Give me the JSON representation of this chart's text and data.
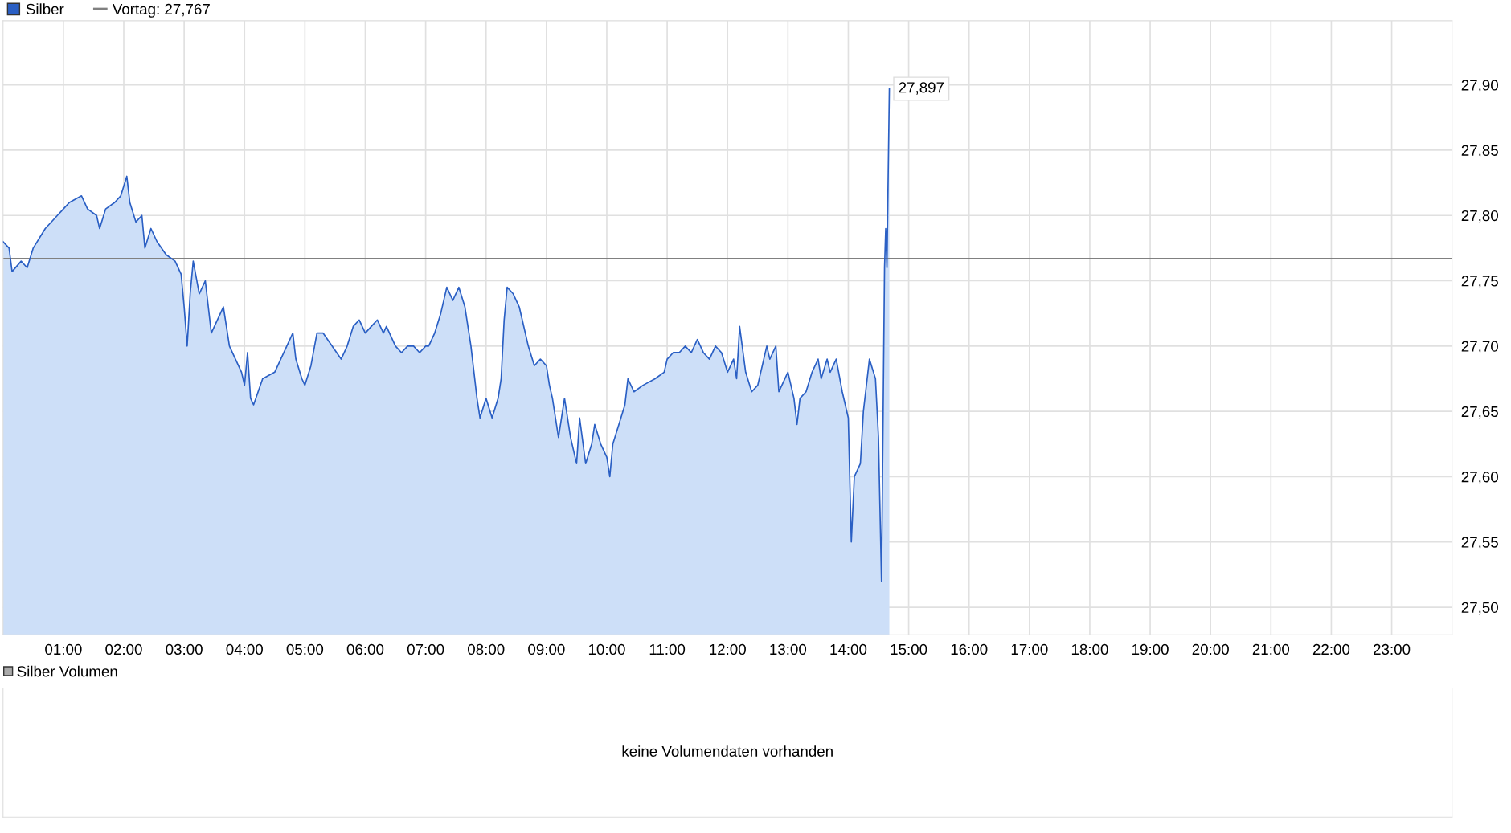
{
  "chart_data": [
    {
      "type": "area",
      "legend": "top left",
      "grid": true,
      "xlim": [
        0,
        24
      ],
      "ylim": [
        27.479,
        27.949
      ],
      "xticks": [
        {
          "value": 1,
          "label": "01:00"
        },
        {
          "value": 2,
          "label": "02:00"
        },
        {
          "value": 3,
          "label": "03:00"
        },
        {
          "value": 4,
          "label": "04:00"
        },
        {
          "value": 5,
          "label": "05:00"
        },
        {
          "value": 6,
          "label": "06:00"
        },
        {
          "value": 7,
          "label": "07:00"
        },
        {
          "value": 8,
          "label": "08:00"
        },
        {
          "value": 9,
          "label": "09:00"
        },
        {
          "value": 10,
          "label": "10:00"
        },
        {
          "value": 11,
          "label": "11:00"
        },
        {
          "value": 12,
          "label": "12:00"
        },
        {
          "value": 13,
          "label": "13:00"
        },
        {
          "value": 14,
          "label": "14:00"
        },
        {
          "value": 15,
          "label": "15:00"
        },
        {
          "value": 16,
          "label": "16:00"
        },
        {
          "value": 17,
          "label": "17:00"
        },
        {
          "value": 18,
          "label": "18:00"
        },
        {
          "value": 19,
          "label": "19:00"
        },
        {
          "value": 20,
          "label": "20:00"
        },
        {
          "value": 21,
          "label": "21:00"
        },
        {
          "value": 22,
          "label": "22:00"
        },
        {
          "value": 23,
          "label": "23:00"
        }
      ],
      "yticks": [
        {
          "value": 27.5,
          "label": "27,50"
        },
        {
          "value": 27.55,
          "label": "27,55"
        },
        {
          "value": 27.6,
          "label": "27,60"
        },
        {
          "value": 27.65,
          "label": "27,65"
        },
        {
          "value": 27.7,
          "label": "27,70"
        },
        {
          "value": 27.75,
          "label": "27,75"
        },
        {
          "value": 27.8,
          "label": "27,80"
        },
        {
          "value": 27.85,
          "label": "27,85"
        },
        {
          "value": 27.9,
          "label": "27,90"
        }
      ],
      "ref_lines": [
        {
          "axis": "y",
          "value": 27.767,
          "label": "Vortag: 27,767",
          "color": "#808080"
        }
      ],
      "annotations": [
        {
          "text": "27,897",
          "x": 14.68,
          "y": 27.897
        }
      ],
      "series": [
        {
          "name": "Silber",
          "color": "#2a5fc4",
          "x": [
            0.0,
            0.1,
            0.15,
            0.3,
            0.4,
            0.5,
            0.7,
            0.9,
            1.0,
            1.1,
            1.3,
            1.4,
            1.55,
            1.6,
            1.7,
            1.85,
            1.95,
            2.05,
            2.1,
            2.2,
            2.3,
            2.35,
            2.45,
            2.55,
            2.7,
            2.85,
            2.95,
            3.0,
            3.05,
            3.1,
            3.15,
            3.25,
            3.35,
            3.45,
            3.55,
            3.65,
            3.75,
            3.85,
            3.95,
            4.0,
            4.05,
            4.1,
            4.15,
            4.3,
            4.5,
            4.6,
            4.7,
            4.8,
            4.85,
            4.95,
            5.0,
            5.1,
            5.2,
            5.3,
            5.45,
            5.6,
            5.7,
            5.8,
            5.9,
            6.0,
            6.1,
            6.2,
            6.3,
            6.35,
            6.5,
            6.6,
            6.7,
            6.8,
            6.9,
            7.0,
            7.05,
            7.15,
            7.25,
            7.35,
            7.45,
            7.55,
            7.65,
            7.75,
            7.8,
            7.85,
            7.9,
            8.0,
            8.1,
            8.2,
            8.25,
            8.3,
            8.35,
            8.45,
            8.55,
            8.6,
            8.7,
            8.8,
            8.9,
            9.0,
            9.05,
            9.1,
            9.2,
            9.3,
            9.4,
            9.5,
            9.55,
            9.65,
            9.75,
            9.8,
            9.9,
            10.0,
            10.05,
            10.1,
            10.2,
            10.3,
            10.35,
            10.45,
            10.6,
            10.8,
            10.95,
            11.0,
            11.1,
            11.2,
            11.3,
            11.4,
            11.5,
            11.6,
            11.7,
            11.8,
            11.9,
            12.0,
            12.1,
            12.15,
            12.2,
            12.3,
            12.4,
            12.5,
            12.6,
            12.65,
            12.7,
            12.8,
            12.85,
            12.9,
            13.0,
            13.1,
            13.15,
            13.2,
            13.3,
            13.4,
            13.5,
            13.55,
            13.65,
            13.7,
            13.8,
            13.9,
            13.95,
            14.0,
            14.05,
            14.1,
            14.2,
            14.25,
            14.35,
            14.45,
            14.5,
            14.55,
            14.6,
            14.62,
            14.64,
            14.68
          ],
          "values": [
            27.78,
            27.775,
            27.757,
            27.765,
            27.76,
            27.775,
            27.79,
            27.8,
            27.805,
            27.81,
            27.815,
            27.805,
            27.8,
            27.79,
            27.805,
            27.81,
            27.815,
            27.83,
            27.81,
            27.795,
            27.8,
            27.775,
            27.79,
            27.78,
            27.77,
            27.765,
            27.755,
            27.73,
            27.7,
            27.74,
            27.765,
            27.74,
            27.75,
            27.71,
            27.72,
            27.73,
            27.7,
            27.69,
            27.68,
            27.67,
            27.695,
            27.66,
            27.655,
            27.675,
            27.68,
            27.69,
            27.7,
            27.71,
            27.69,
            27.675,
            27.67,
            27.685,
            27.71,
            27.71,
            27.7,
            27.69,
            27.7,
            27.715,
            27.72,
            27.71,
            27.715,
            27.72,
            27.71,
            27.715,
            27.7,
            27.695,
            27.7,
            27.7,
            27.695,
            27.7,
            27.7,
            27.71,
            27.725,
            27.745,
            27.735,
            27.745,
            27.73,
            27.7,
            27.68,
            27.66,
            27.645,
            27.66,
            27.645,
            27.66,
            27.675,
            27.72,
            27.745,
            27.74,
            27.73,
            27.72,
            27.7,
            27.685,
            27.69,
            27.685,
            27.67,
            27.66,
            27.63,
            27.66,
            27.63,
            27.61,
            27.645,
            27.61,
            27.625,
            27.64,
            27.625,
            27.615,
            27.6,
            27.625,
            27.64,
            27.655,
            27.675,
            27.665,
            27.67,
            27.675,
            27.68,
            27.69,
            27.695,
            27.695,
            27.7,
            27.695,
            27.705,
            27.695,
            27.69,
            27.7,
            27.695,
            27.68,
            27.69,
            27.675,
            27.715,
            27.68,
            27.665,
            27.67,
            27.69,
            27.7,
            27.69,
            27.7,
            27.665,
            27.67,
            27.68,
            27.66,
            27.64,
            27.66,
            27.665,
            27.68,
            27.69,
            27.675,
            27.69,
            27.68,
            27.69,
            27.665,
            27.655,
            27.645,
            27.55,
            27.6,
            27.61,
            27.65,
            27.69,
            27.675,
            27.63,
            27.52,
            27.76,
            27.79,
            27.76,
            27.897
          ]
        }
      ]
    },
    {
      "type": "other",
      "title": "Silber Volumen",
      "annotations": [
        "keine Volumendaten vorhanden"
      ]
    }
  ]
}
